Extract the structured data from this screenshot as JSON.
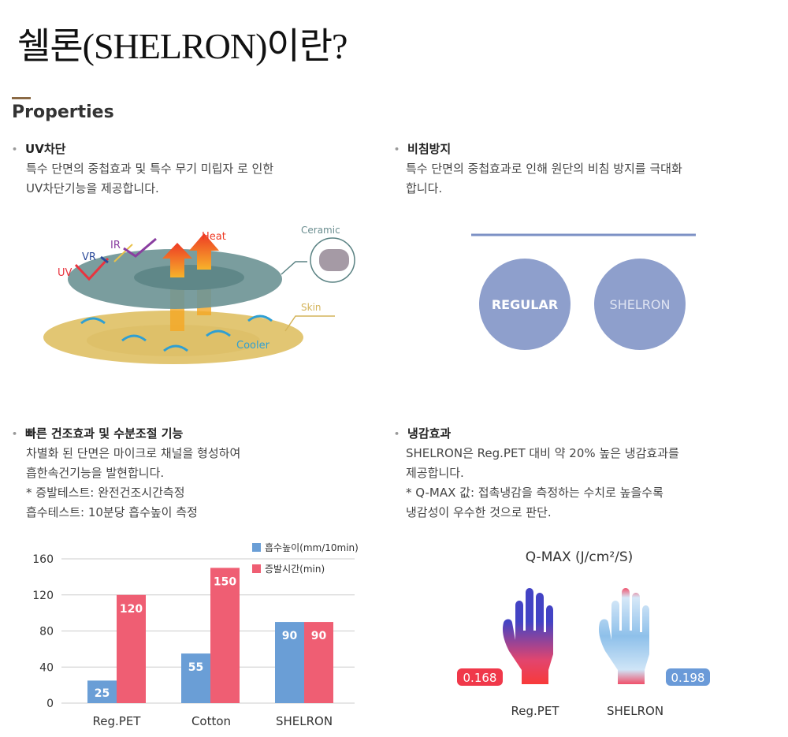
{
  "title": "쉘론(SHELRON)이란?",
  "section_heading": "Properties",
  "sections": [
    {
      "title": "UV차단",
      "body": "특수 단면의 중첩효과 및 특수 무기 미립자 로 인한\nUV차단기능을 제공합니다."
    },
    {
      "title": "비침방지",
      "body": "특수 단면의 중첩효과로 인해 원단의 비침 방지를 극대화\n합니다."
    },
    {
      "title": "빠른 건조효과 및 수분조절 기능",
      "body": "차별화 된 단면은 마이크로 채널을 형성하여\n흡한속건기능을 발현합니다.\n * 증발테스트: 완전건조시간측정\n흡수테스트: 10분당 흡수높이 측정"
    },
    {
      "title": "냉감효과",
      "body": "SHELRON은 Reg.PET 대비 약 20% 높은 냉감효과를\n제공합니다.\n * Q-MAX 값: 접촉냉감을 측정하는 수치로 높을수록\n냉감성이 우수한 것으로 판단."
    }
  ],
  "uv_diagram": {
    "labels": {
      "uv": "UV",
      "vr": "VR",
      "ir": "IR",
      "heat": "Heat",
      "ceramic": "Ceramic",
      "skin": "Skin",
      "cooler": "Cooler"
    }
  },
  "opacity_diagram": {
    "regular": "REGULAR",
    "shelron": "SHELRON",
    "color": "#8e9fcc"
  },
  "chart_data": {
    "type": "bar",
    "categories": [
      "Reg.PET",
      "Cotton",
      "SHELRON"
    ],
    "series": [
      {
        "name": "흡수높이(mm/10min)",
        "values": [
          25,
          55,
          90
        ],
        "color": "#6a9ed6"
      },
      {
        "name": "증발시간(min)",
        "values": [
          120,
          150,
          90
        ],
        "color": "#ef5e73"
      }
    ],
    "ylim": [
      0,
      160
    ],
    "yticks": [
      "0",
      "40",
      "80",
      "120",
      "160"
    ],
    "grid": true,
    "legend": "top-right"
  },
  "qmax": {
    "title": "Q-MAX (J/cm²/S)",
    "items": [
      {
        "label": "Reg.PET",
        "value": "0.168",
        "color": "#f0384a"
      },
      {
        "label": "SHELRON",
        "value": "0.198",
        "color": "#6a9ad8"
      }
    ]
  }
}
